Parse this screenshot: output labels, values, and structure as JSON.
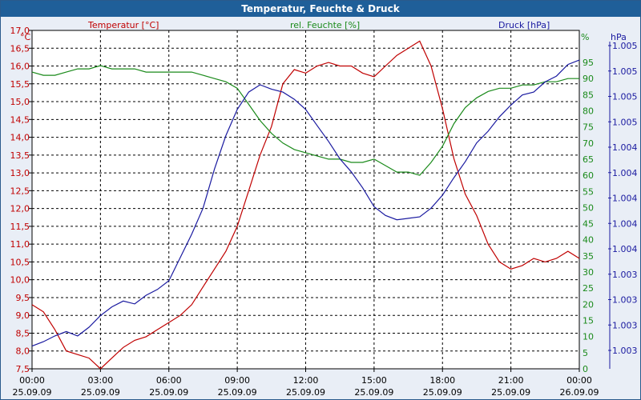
{
  "chart_data": {
    "type": "line",
    "title": "Temperatur, Feuchte & Druck",
    "x_ticks": [
      {
        "time": "00:00",
        "date": "25.09.09"
      },
      {
        "time": "03:00",
        "date": "25.09.09"
      },
      {
        "time": "06:00",
        "date": "25.09.09"
      },
      {
        "time": "09:00",
        "date": "25.09.09"
      },
      {
        "time": "12:00",
        "date": "25.09.09"
      },
      {
        "time": "15:00",
        "date": "25.09.09"
      },
      {
        "time": "18:00",
        "date": "25.09.09"
      },
      {
        "time": "21:00",
        "date": "25.09.09"
      },
      {
        "time": "00:00",
        "date": "26.09.09"
      }
    ],
    "xlim_hours": [
      0,
      24
    ],
    "grid": true,
    "axes": {
      "temperature": {
        "unit_label": "°C",
        "color": "#c00000",
        "ylim": [
          7.5,
          17.0
        ],
        "ticks": [
          "7,5",
          "8,0",
          "8,5",
          "9,0",
          "9,5",
          "10,0",
          "10,5",
          "11,0",
          "11,5",
          "12,0",
          "12,5",
          "13,0",
          "13,5",
          "14,0",
          "14,5",
          "15,0",
          "15,5",
          "16,0",
          "16,5",
          "17,0"
        ]
      },
      "humidity": {
        "unit_label": "%",
        "color": "#1a8a1a",
        "ylim": [
          0,
          95
        ],
        "ticks": [
          "0",
          "5",
          "10",
          "15",
          "20",
          "25",
          "30",
          "35",
          "40",
          "45",
          "50",
          "55",
          "60",
          "65",
          "70",
          "75",
          "80",
          "85",
          "90",
          "95"
        ]
      },
      "pressure": {
        "unit_label": "hPa",
        "color": "#1a1aa0",
        "ticks": [
          "1.003",
          "1.003",
          "1.003",
          "1.003",
          "1.004",
          "1.004",
          "1.004",
          "1.004",
          "1.004",
          "1.005",
          "1.005",
          "1.005",
          "1.005"
        ]
      }
    },
    "series": [
      {
        "name": "Temperatur [°C]",
        "axis": "temperature",
        "color": "#c00000",
        "hours": [
          0,
          0.5,
          1,
          1.5,
          2,
          2.5,
          3,
          3.5,
          4,
          4.5,
          5,
          5.5,
          6,
          6.5,
          7,
          7.5,
          8,
          8.5,
          9,
          9.5,
          10,
          10.5,
          11,
          11.5,
          12,
          12.5,
          13,
          13.5,
          14,
          14.5,
          15,
          15.5,
          16,
          16.5,
          17,
          17.5,
          18,
          18.5,
          19,
          19.5,
          20,
          20.5,
          21,
          21.5,
          22,
          22.5,
          23,
          23.5,
          24
        ],
        "values": [
          9.3,
          9.1,
          8.6,
          8.0,
          7.9,
          7.8,
          7.5,
          7.8,
          8.1,
          8.3,
          8.4,
          8.6,
          8.8,
          9.0,
          9.3,
          9.8,
          10.3,
          10.8,
          11.5,
          12.5,
          13.5,
          14.3,
          15.5,
          15.9,
          15.8,
          16.0,
          16.1,
          16.0,
          16.0,
          15.8,
          15.7,
          16.0,
          16.3,
          16.5,
          16.7,
          16.0,
          14.8,
          13.4,
          12.4,
          11.8,
          11.0,
          10.5,
          10.3,
          10.4,
          10.6,
          10.5,
          10.6,
          10.8,
          10.6
        ]
      },
      {
        "name": "rel. Feuchte [%]",
        "axis": "humidity",
        "color": "#1a8a1a",
        "hours": [
          0,
          0.5,
          1,
          1.5,
          2,
          2.5,
          3,
          3.5,
          4,
          4.5,
          5,
          5.5,
          6,
          6.5,
          7,
          7.5,
          8,
          8.5,
          9,
          9.5,
          10,
          10.5,
          11,
          11.5,
          12,
          12.5,
          13,
          13.5,
          14,
          14.5,
          15,
          15.5,
          16,
          16.5,
          17,
          17.5,
          18,
          18.5,
          19,
          19.5,
          20,
          20.5,
          21,
          21.5,
          22,
          22.5,
          23,
          23.5,
          24
        ],
        "values": [
          92,
          91,
          91,
          92,
          93,
          93,
          94,
          93,
          93,
          93,
          92,
          92,
          92,
          92,
          92,
          91,
          90,
          89,
          87,
          82,
          77,
          73,
          70,
          68,
          67,
          66,
          65,
          65,
          64,
          64,
          65,
          63,
          61,
          61,
          60,
          64,
          69,
          76,
          81,
          84,
          86,
          87,
          87,
          88,
          88,
          89,
          89,
          90,
          90
        ]
      },
      {
        "name": "Druck [hPa]",
        "axis": "pressure",
        "color": "#1a1aa0",
        "hours": [
          0,
          0.5,
          1,
          1.5,
          2,
          2.5,
          3,
          3.5,
          4,
          4.5,
          5,
          5.5,
          6,
          6.5,
          7,
          7.5,
          8,
          8.5,
          9,
          9.5,
          10,
          10.5,
          11,
          11.5,
          12,
          12.5,
          13,
          13.5,
          14,
          14.5,
          15,
          15.5,
          16,
          16.5,
          17,
          17.5,
          18,
          18.5,
          19,
          19.5,
          20,
          20.5,
          21,
          21.5,
          22,
          22.5,
          23,
          23.5,
          24
        ],
        "values": [
          0.3,
          0.6,
          1.0,
          1.3,
          1.0,
          1.6,
          2.4,
          3.0,
          3.4,
          3.2,
          3.8,
          4.2,
          4.8,
          6.4,
          8.0,
          9.8,
          12.5,
          14.8,
          16.6,
          17.8,
          18.3,
          18.0,
          17.8,
          17.3,
          16.6,
          15.5,
          14.4,
          13.2,
          12.3,
          11.2,
          9.9,
          9.3,
          9.0,
          9.1,
          9.2,
          9.8,
          10.7,
          11.9,
          13.0,
          14.3,
          15.1,
          16.1,
          16.9,
          17.6,
          17.8,
          18.5,
          18.9,
          19.7,
          20.0
        ]
      }
    ]
  }
}
